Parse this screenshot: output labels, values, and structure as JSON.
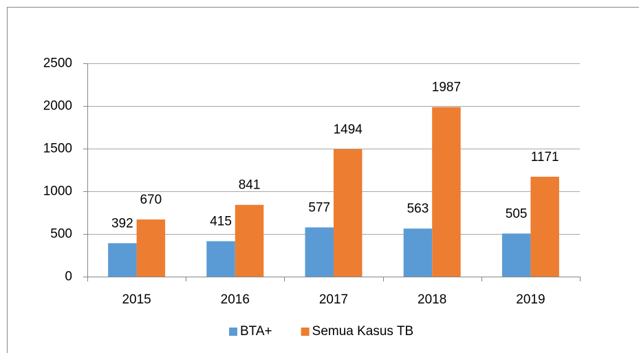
{
  "chart_data": {
    "type": "bar",
    "categories": [
      "2015",
      "2016",
      "2017",
      "2018",
      "2019"
    ],
    "series": [
      {
        "name": "BTA+",
        "color": "#5b9bd5",
        "values": [
          392,
          415,
          577,
          563,
          505
        ]
      },
      {
        "name": "Semua Kasus TB",
        "color": "#ed7d31",
        "values": [
          670,
          841,
          1494,
          1987,
          1171
        ]
      }
    ],
    "ylim": [
      0,
      2500
    ],
    "yticks": [
      0,
      500,
      1000,
      1500,
      2000,
      2500
    ],
    "grid": true,
    "legend": "bottom"
  }
}
